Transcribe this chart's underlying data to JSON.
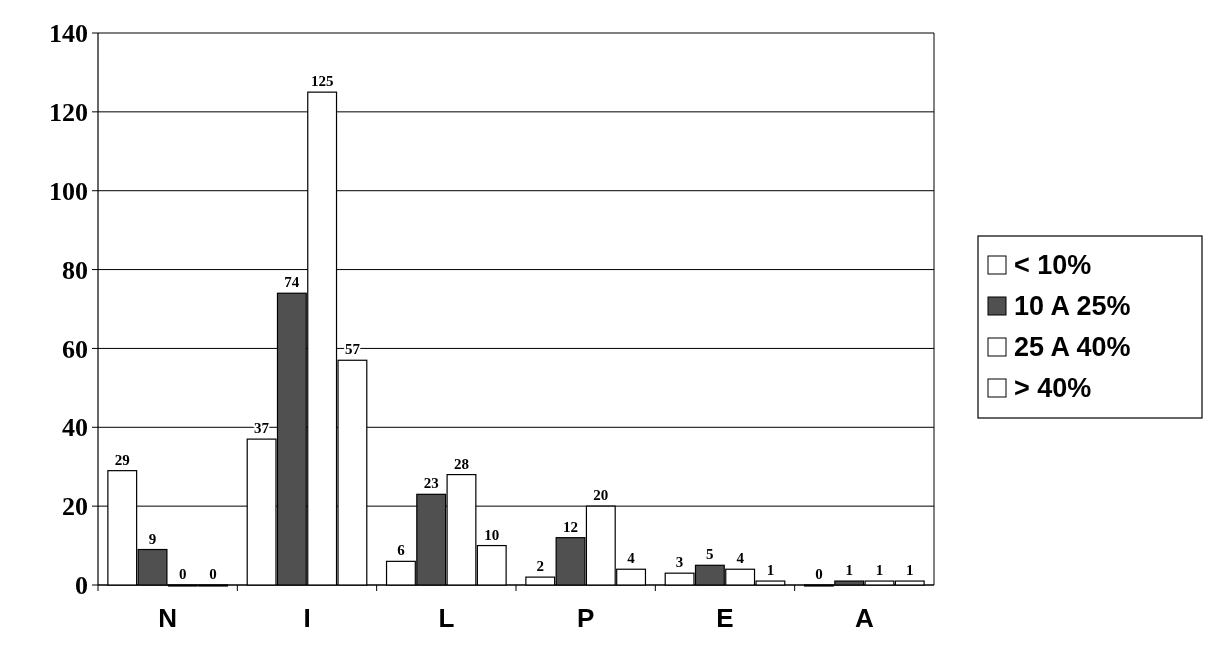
{
  "chart_data": {
    "type": "bar",
    "categories": [
      "N",
      "I",
      "L",
      "P",
      "E",
      "A"
    ],
    "series": [
      {
        "name": "< 10%",
        "color": "#ffffff",
        "values": [
          29,
          37,
          6,
          2,
          3,
          0
        ]
      },
      {
        "name": "10 A 25%",
        "color": "#505050",
        "values": [
          9,
          74,
          23,
          12,
          5,
          1
        ]
      },
      {
        "name": "25 A 40%",
        "color": "#ffffff",
        "values": [
          0,
          125,
          28,
          20,
          4,
          1
        ]
      },
      {
        "name": "> 40%",
        "color": "#ffffff",
        "values": [
          0,
          57,
          10,
          4,
          1,
          1
        ]
      }
    ],
    "ylim": [
      0,
      140
    ],
    "yticks": [
      0,
      20,
      40,
      60,
      80,
      100,
      120,
      140
    ],
    "grid": "y",
    "legend": "right",
    "data_labels": true
  }
}
